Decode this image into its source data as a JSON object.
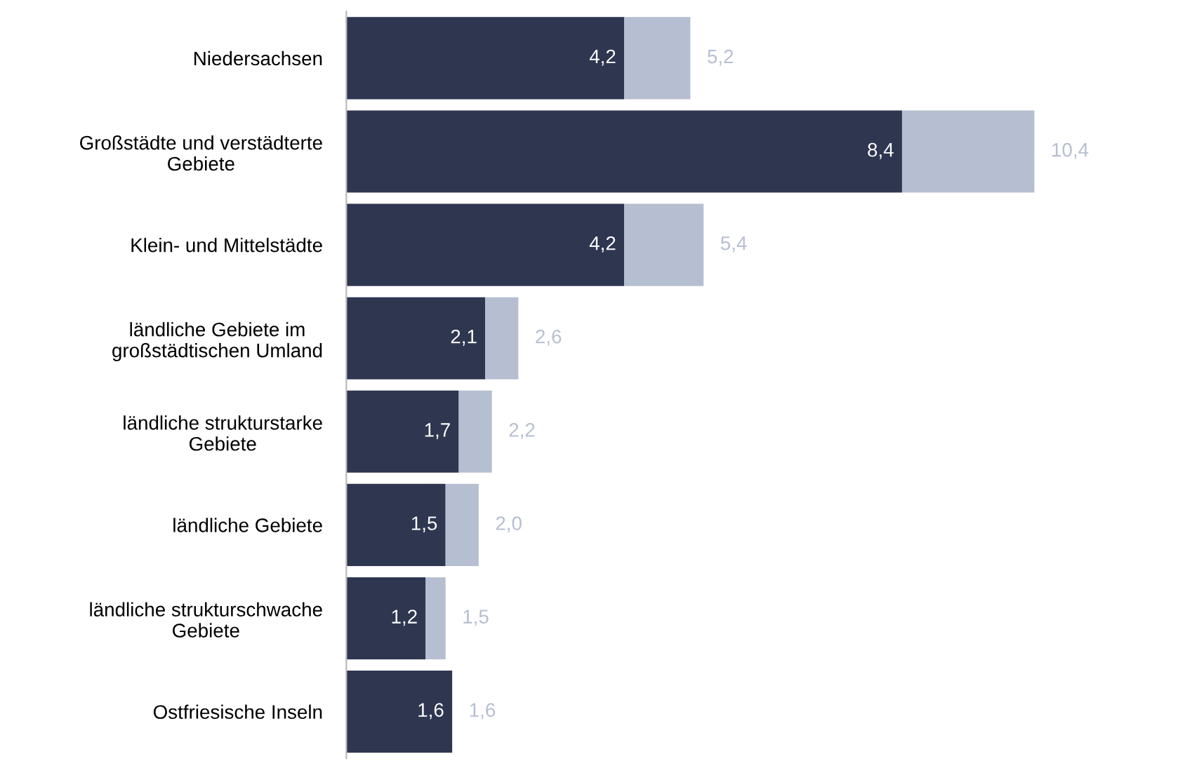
{
  "chart_data": {
    "type": "bar",
    "orientation": "horizontal",
    "stacked": true,
    "categories": [
      "Niedersachsen",
      "Großstädte und verstädterte\nGebiete",
      "Klein- und Mittelstädte",
      "ländliche Gebiete im\ngroßstädtischen Umland",
      "ländliche strukturstarke\nGebiete",
      "ländliche Gebiete",
      "ländliche strukturschwache\nGebiete",
      "Ostfriesische Inseln"
    ],
    "series": [
      {
        "color": "#2f3650",
        "values": [
          4.2,
          8.4,
          4.2,
          2.1,
          1.7,
          1.5,
          1.2,
          1.6
        ],
        "value_labels": [
          "4,2",
          "8,4",
          "4,2",
          "2,1",
          "1,7",
          "1,5",
          "1,2",
          "1,6"
        ]
      },
      {
        "color": "#b6bed1",
        "values": [
          1.0,
          2.0,
          1.2,
          0.5,
          0.5,
          0.5,
          0.3,
          0.0
        ]
      }
    ],
    "totals": [
      "5,2",
      "10,4",
      "5,4",
      "2,6",
      "2,2",
      "2,0",
      "1,5",
      "1,6"
    ],
    "grid": false,
    "legend": false
  }
}
